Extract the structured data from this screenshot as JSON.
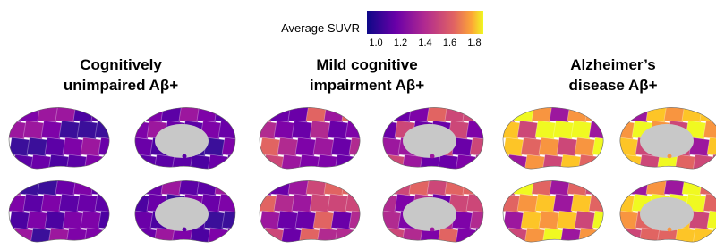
{
  "colorbar": {
    "title": "Average SUVR",
    "ticks": [
      "1.0",
      "1.2",
      "1.4",
      "1.6",
      "1.8"
    ]
  },
  "panels": [
    {
      "title": [
        "Cognitively",
        "unimpaired Aβ+"
      ]
    },
    {
      "title": [
        "Mild cognitive",
        "impairment Aβ+"
      ]
    },
    {
      "title": [
        "Alzheimer’s",
        "disease Aβ+"
      ]
    }
  ]
}
